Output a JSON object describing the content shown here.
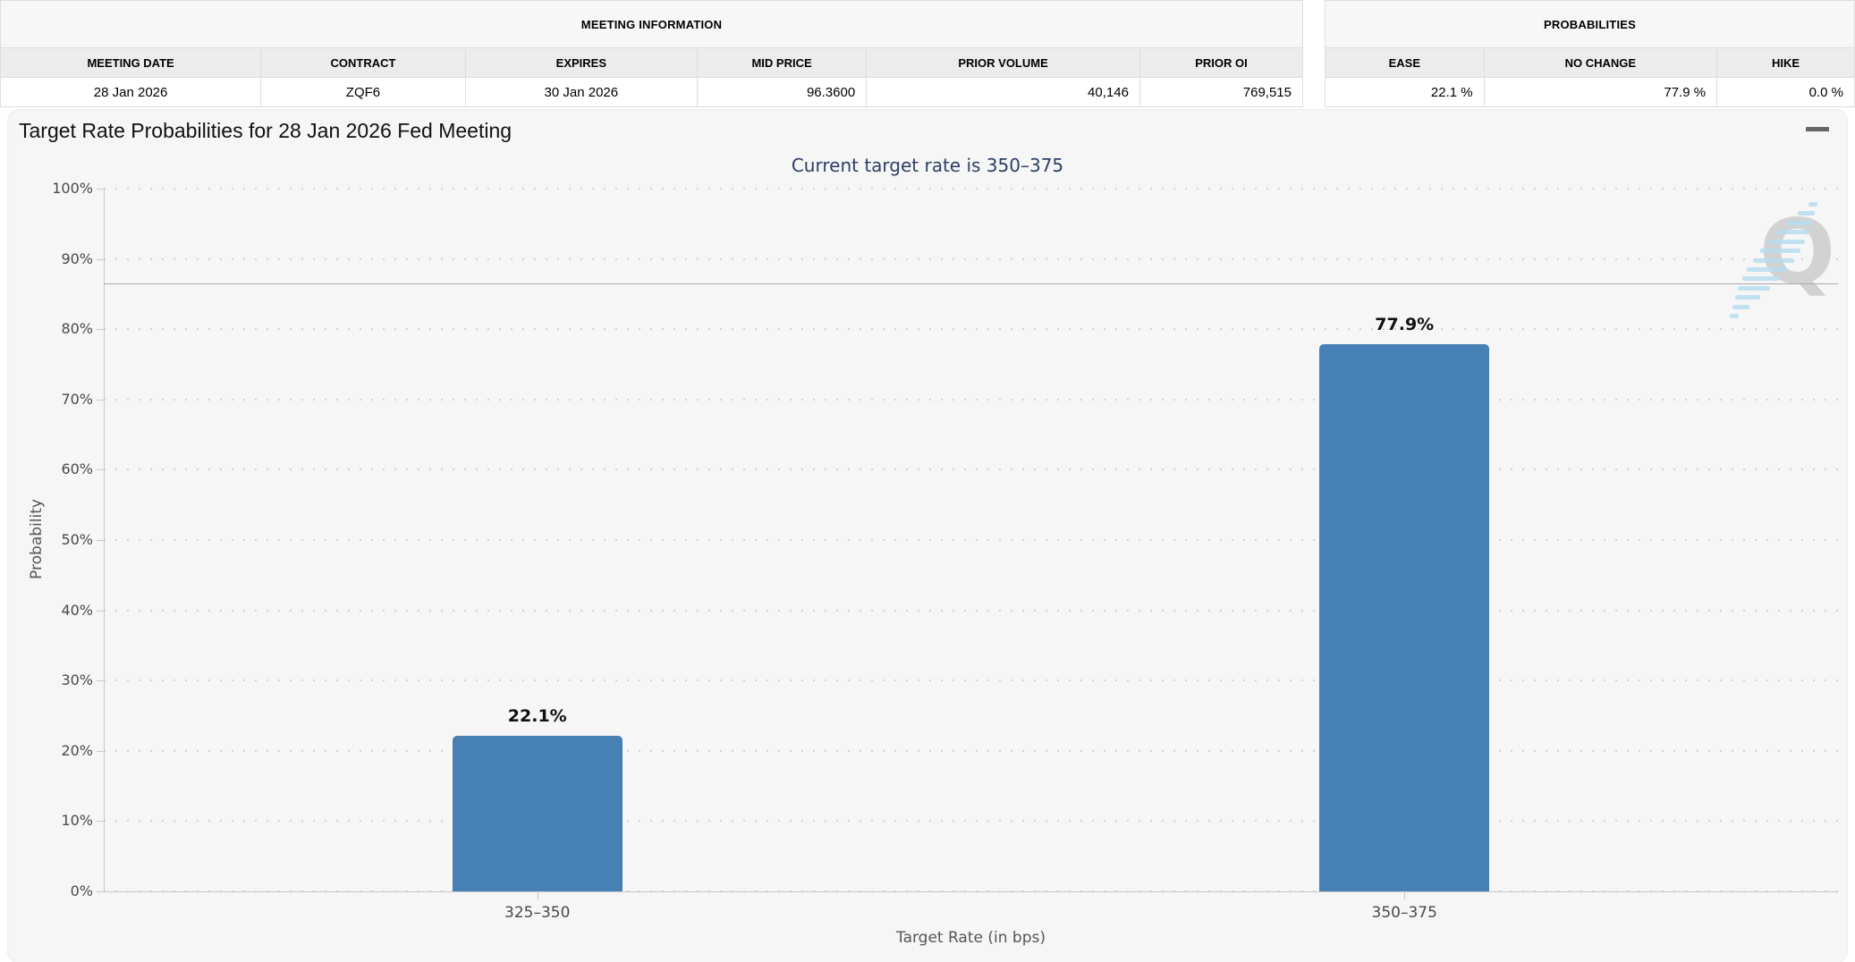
{
  "meeting_table": {
    "caption": "MEETING INFORMATION",
    "columns": [
      {
        "label": "MEETING DATE",
        "value": "28 Jan 2026",
        "align": "center"
      },
      {
        "label": "CONTRACT",
        "value": "ZQF6",
        "align": "center"
      },
      {
        "label": "EXPIRES",
        "value": "30 Jan 2026",
        "align": "center"
      },
      {
        "label": "MID PRICE",
        "value": "96.3600",
        "align": "right"
      },
      {
        "label": "PRIOR VOLUME",
        "value": "40,146",
        "align": "right"
      },
      {
        "label": "PRIOR OI",
        "value": "769,515",
        "align": "right"
      }
    ]
  },
  "probabilities_table": {
    "caption": "PROBABILITIES",
    "columns": [
      {
        "label": "EASE",
        "value": "22.1 %",
        "align": "right"
      },
      {
        "label": "NO CHANGE",
        "value": "77.9 %",
        "align": "right"
      },
      {
        "label": "HIKE",
        "value": "0.0 %",
        "align": "right"
      }
    ]
  },
  "chart": {
    "title": "Target Rate Probabilities for 28 Jan 2026 Fed Meeting",
    "subtitle": "Current target rate is 350–375",
    "menu_icon": "hamburger-icon",
    "watermark_letter": "Q"
  },
  "chart_data": {
    "type": "bar",
    "categories": [
      "325–350",
      "350–375"
    ],
    "values": [
      22.1,
      77.9
    ],
    "value_labels": [
      "22.1%",
      "77.9%"
    ],
    "title": "Target Rate Probabilities for 28 Jan 2026 Fed Meeting",
    "subtitle": "Current target rate is 350–375",
    "xlabel": "Target Rate (in bps)",
    "ylabel": "Probability",
    "ylim": [
      0,
      100
    ],
    "ytick_step": 10,
    "ytick_suffix": "%",
    "grid": "dotted",
    "legend": "none",
    "reference_line_y": 86.5,
    "colors": {
      "bar": "#4780b4",
      "subtitle_text": "#2e3f66",
      "reference_line": "#a9a9a9",
      "axis": "#c9c9c9",
      "grid_dot": "#d2d2d2",
      "plot_background": "#f6f6f6"
    }
  }
}
